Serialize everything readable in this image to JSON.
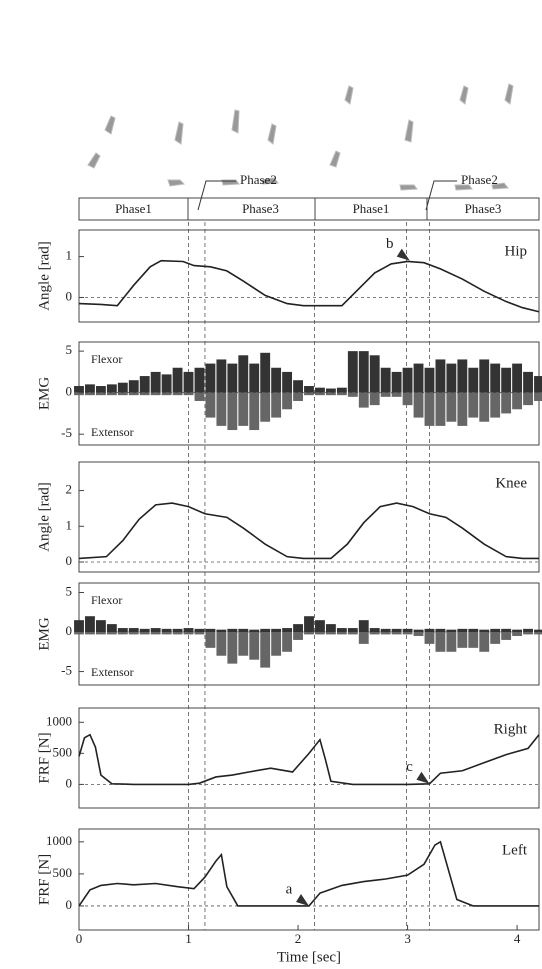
{
  "phases": {
    "labels": [
      "Phase1",
      "Phase3",
      "Phase1",
      "Phase3"
    ],
    "phase2_labels": [
      "Phase2",
      "Phase2"
    ],
    "boundaries": [
      1.0,
      1.15,
      2.15,
      2.99,
      3.2
    ]
  },
  "chart_data": [
    {
      "type": "line",
      "ylabel": "Angle [rad]",
      "label": "Hip",
      "color": "#222",
      "xlim": [
        0,
        4.2
      ],
      "ylim": [
        -0.6,
        1.65
      ],
      "yticks": [
        0,
        1
      ],
      "x": [
        0,
        0.2,
        0.35,
        0.5,
        0.65,
        0.75,
        0.95,
        1.05,
        1.2,
        1.35,
        1.5,
        1.7,
        1.9,
        2.05,
        2.4,
        2.55,
        2.7,
        2.85,
        3.0,
        3.15,
        3.3,
        3.5,
        3.7,
        3.9,
        4.05,
        4.2
      ],
      "values": [
        -0.15,
        -0.17,
        -0.2,
        0.3,
        0.75,
        0.9,
        0.88,
        0.78,
        0.75,
        0.65,
        0.4,
        0.05,
        -0.15,
        -0.2,
        -0.2,
        0.2,
        0.6,
        0.82,
        0.88,
        0.85,
        0.7,
        0.45,
        0.15,
        -0.1,
        -0.25,
        -0.35
      ],
      "annotations": [
        {
          "text": "b",
          "x": 3.02,
          "y": 0.9
        }
      ]
    },
    {
      "type": "emg",
      "ylabel": "EMG",
      "xlim": [
        0,
        4.2
      ],
      "ylim": [
        -6.3,
        6.1
      ],
      "yticks": [
        -5,
        0,
        5
      ],
      "x": [
        0,
        0.1,
        0.2,
        0.3,
        0.4,
        0.5,
        0.6,
        0.7,
        0.8,
        0.9,
        1.0,
        1.1,
        1.2,
        1.3,
        1.4,
        1.5,
        1.6,
        1.7,
        1.8,
        1.9,
        2.0,
        2.1,
        2.2,
        2.3,
        2.4,
        2.5,
        2.6,
        2.7,
        2.8,
        2.9,
        3.0,
        3.1,
        3.2,
        3.3,
        3.4,
        3.5,
        3.6,
        3.7,
        3.8,
        3.9,
        4.0,
        4.1,
        4.2
      ],
      "series": [
        {
          "name": "Flexor",
          "color": "#333",
          "values": [
            0.8,
            1,
            0.8,
            1,
            1.2,
            1.5,
            2,
            2.5,
            2.2,
            3,
            2.5,
            3,
            3.5,
            4,
            3.5,
            4.5,
            3.5,
            4.8,
            3,
            2.5,
            1.5,
            0.8,
            0.6,
            0.5,
            0.6,
            5,
            5,
            4.5,
            3,
            2.5,
            3,
            3.5,
            3,
            4,
            3.5,
            4,
            3,
            4,
            3.5,
            3,
            3.5,
            2.5,
            2
          ]
        },
        {
          "name": "Extensor",
          "color": "#666",
          "values": [
            -0.3,
            -0.3,
            -0.3,
            -0.3,
            -0.3,
            -0.3,
            -0.3,
            -0.3,
            -0.3,
            -0.3,
            -0.3,
            -1,
            -3,
            -4,
            -4.5,
            -4,
            -4.5,
            -3.5,
            -3,
            -2,
            -1,
            -0.3,
            -0.3,
            -0.3,
            -0.3,
            -0.5,
            -1.8,
            -1.5,
            -0.5,
            -0.5,
            -1.5,
            -3,
            -4,
            -4,
            -3.5,
            -4,
            -3,
            -3.5,
            -3,
            -2.5,
            -2,
            -1.5,
            -1
          ]
        }
      ]
    },
    {
      "type": "line",
      "ylabel": "Angle [rad]",
      "label": "Knee",
      "color": "#222",
      "xlim": [
        0,
        4.2
      ],
      "ylim": [
        -0.28,
        2.8
      ],
      "yticks": [
        0,
        1,
        2
      ],
      "x": [
        0,
        0.25,
        0.4,
        0.55,
        0.7,
        0.85,
        1.0,
        1.15,
        1.35,
        1.5,
        1.7,
        1.9,
        2.05,
        2.3,
        2.45,
        2.6,
        2.75,
        2.9,
        3.05,
        3.2,
        3.35,
        3.5,
        3.7,
        3.9,
        4.05,
        4.2
      ],
      "values": [
        0.1,
        0.15,
        0.6,
        1.2,
        1.6,
        1.65,
        1.55,
        1.35,
        1.25,
        0.95,
        0.5,
        0.15,
        0.1,
        0.1,
        0.5,
        1.1,
        1.55,
        1.65,
        1.55,
        1.35,
        1.25,
        0.95,
        0.5,
        0.15,
        0.1,
        0.1
      ]
    },
    {
      "type": "emg",
      "ylabel": "EMG",
      "xlim": [
        0,
        4.2
      ],
      "ylim": [
        -6.7,
        6.2
      ],
      "yticks": [
        -5,
        0,
        5
      ],
      "x": [
        0,
        0.1,
        0.2,
        0.3,
        0.4,
        0.5,
        0.6,
        0.7,
        0.8,
        0.9,
        1.0,
        1.1,
        1.2,
        1.3,
        1.4,
        1.5,
        1.6,
        1.7,
        1.8,
        1.9,
        2.0,
        2.1,
        2.2,
        2.3,
        2.4,
        2.5,
        2.6,
        2.7,
        2.8,
        2.9,
        3.0,
        3.1,
        3.2,
        3.3,
        3.4,
        3.5,
        3.6,
        3.7,
        3.8,
        3.9,
        4.0,
        4.1,
        4.2
      ],
      "series": [
        {
          "name": "Flexor",
          "color": "#333",
          "values": [
            1.5,
            2,
            1.5,
            1,
            0.5,
            0.5,
            0.4,
            0.5,
            0.4,
            0.4,
            0.5,
            0.4,
            0.4,
            0.3,
            0.4,
            0.4,
            0.3,
            0.4,
            0.4,
            0.5,
            1,
            2,
            1.5,
            1,
            0.5,
            0.5,
            1.5,
            0.5,
            0.4,
            0.4,
            0.4,
            0.3,
            0.4,
            0.4,
            0.3,
            0.4,
            0.4,
            0.3,
            0.4,
            0.4,
            0.3,
            0.4,
            0.3
          ]
        },
        {
          "name": "Extensor",
          "color": "#666",
          "values": [
            -0.3,
            -0.3,
            -0.3,
            -0.3,
            -0.3,
            -0.3,
            -0.3,
            -0.3,
            -0.3,
            -0.3,
            -0.3,
            -0.3,
            -2,
            -3,
            -4,
            -3,
            -3.5,
            -4.5,
            -3,
            -2.5,
            -1,
            -0.3,
            -0.3,
            -0.3,
            -0.3,
            -0.3,
            -1.5,
            -0.3,
            -0.3,
            -0.3,
            -0.3,
            -0.5,
            -1.5,
            -2.5,
            -2.5,
            -2,
            -2,
            -2.5,
            -1.5,
            -1,
            -0.5,
            -0.3,
            -0.3
          ]
        }
      ]
    },
    {
      "type": "line",
      "ylabel": "FRF [N]",
      "label": "Right",
      "color": "#222",
      "xlim": [
        0,
        4.2
      ],
      "ylim": [
        -380,
        1230
      ],
      "yticks": [
        0,
        500,
        1000
      ],
      "x": [
        0,
        0.05,
        0.1,
        0.15,
        0.2,
        0.3,
        0.5,
        1.0,
        1.1,
        1.25,
        1.4,
        1.55,
        1.75,
        1.95,
        2.1,
        2.2,
        2.25,
        2.3,
        2.5,
        3.0,
        3.2,
        3.3,
        3.5,
        3.7,
        3.9,
        4.1,
        4.2
      ],
      "values": [
        450,
        750,
        800,
        600,
        150,
        10,
        0,
        0,
        20,
        120,
        150,
        200,
        260,
        200,
        500,
        720,
        400,
        50,
        0,
        0,
        10,
        180,
        220,
        350,
        480,
        580,
        800
      ],
      "annotations": [
        {
          "text": "c",
          "x": 3.2,
          "y": 10
        }
      ]
    },
    {
      "type": "line",
      "ylabel": "FRF [N]",
      "label": "Left",
      "color": "#222",
      "xlim": [
        0,
        4.2
      ],
      "ylim": [
        -375,
        1200
      ],
      "yticks": [
        0,
        500,
        1000
      ],
      "x": [
        0,
        0.1,
        0.2,
        0.35,
        0.5,
        0.7,
        0.9,
        1.05,
        1.15,
        1.25,
        1.3,
        1.35,
        1.45,
        2.0,
        2.1,
        2.2,
        2.4,
        2.6,
        2.8,
        3.0,
        3.15,
        3.25,
        3.3,
        3.35,
        3.45,
        3.6,
        4.2
      ],
      "values": [
        0,
        250,
        320,
        350,
        330,
        350,
        300,
        270,
        450,
        700,
        800,
        300,
        0,
        0,
        0,
        200,
        320,
        380,
        420,
        480,
        650,
        950,
        1000,
        700,
        100,
        0,
        0
      ],
      "annotations": [
        {
          "text": "a",
          "x": 2.1,
          "y": 0
        }
      ],
      "xticks": [
        0,
        1,
        2,
        3,
        4
      ],
      "xlabel": "Time [sec]"
    }
  ]
}
